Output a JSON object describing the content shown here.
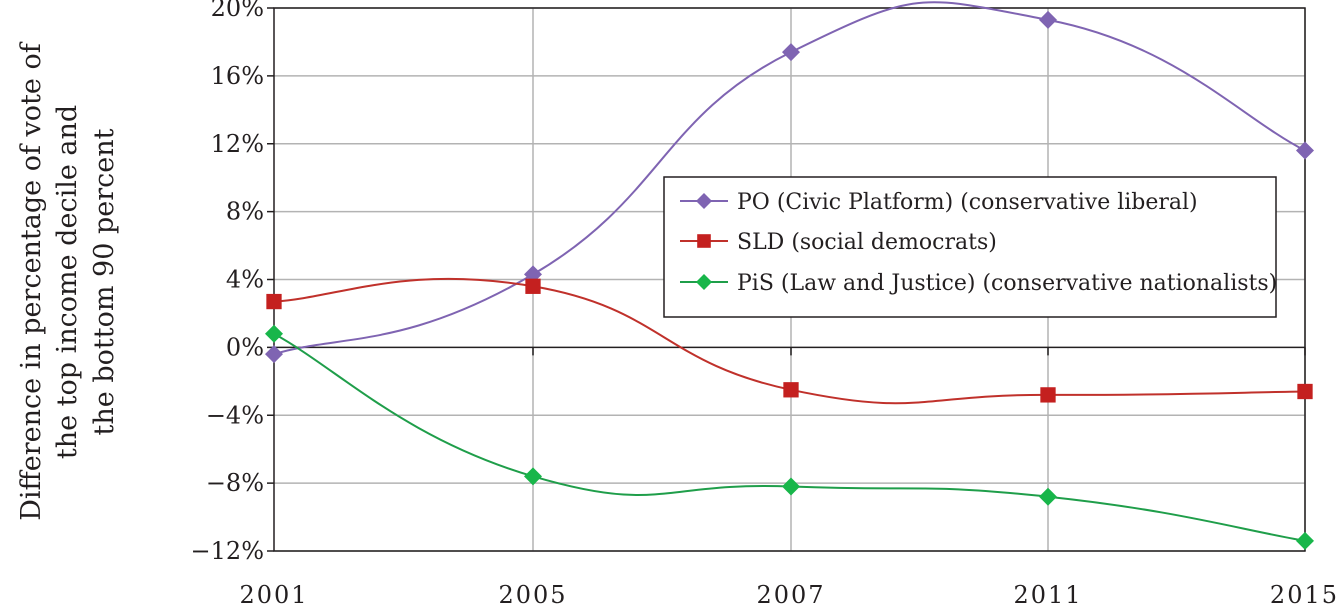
{
  "chart_data": {
    "type": "line",
    "x": [
      "2001",
      "2005",
      "2007",
      "2011",
      "2015"
    ],
    "ylabel_lines": [
      "Difference in percentage of vote of",
      "the top income decile and",
      "the bottom 90 percent"
    ],
    "ylim": [
      -12,
      20
    ],
    "yticks": [
      -12,
      -8,
      -4,
      0,
      4,
      8,
      12,
      16,
      20
    ],
    "ytick_labels": [
      "−12%",
      "−8%",
      "−4%",
      "0%",
      "4%",
      "8%",
      "12%",
      "16%",
      "20%"
    ],
    "grid": true,
    "legend_position": "center-right",
    "series": [
      {
        "name": "PO (Civic Platform) (conservative liberal)",
        "marker": "diamond",
        "color": "#7f64b2",
        "marker_color": "#7f64b2",
        "values": [
          -0.4,
          4.3,
          17.4,
          19.3,
          11.6
        ]
      },
      {
        "name": "SLD (social democrats)",
        "marker": "square",
        "color": "#c0312b",
        "marker_color": "#c4201f",
        "values": [
          2.7,
          3.6,
          -2.5,
          -2.8,
          -2.6
        ]
      },
      {
        "name": "PiS (Law and Justice) (conservative nationalists)",
        "marker": "diamond",
        "color": "#1f9e4a",
        "marker_color": "#18b64a",
        "values": [
          0.8,
          -7.6,
          -8.2,
          -8.8,
          -11.4
        ]
      }
    ]
  }
}
